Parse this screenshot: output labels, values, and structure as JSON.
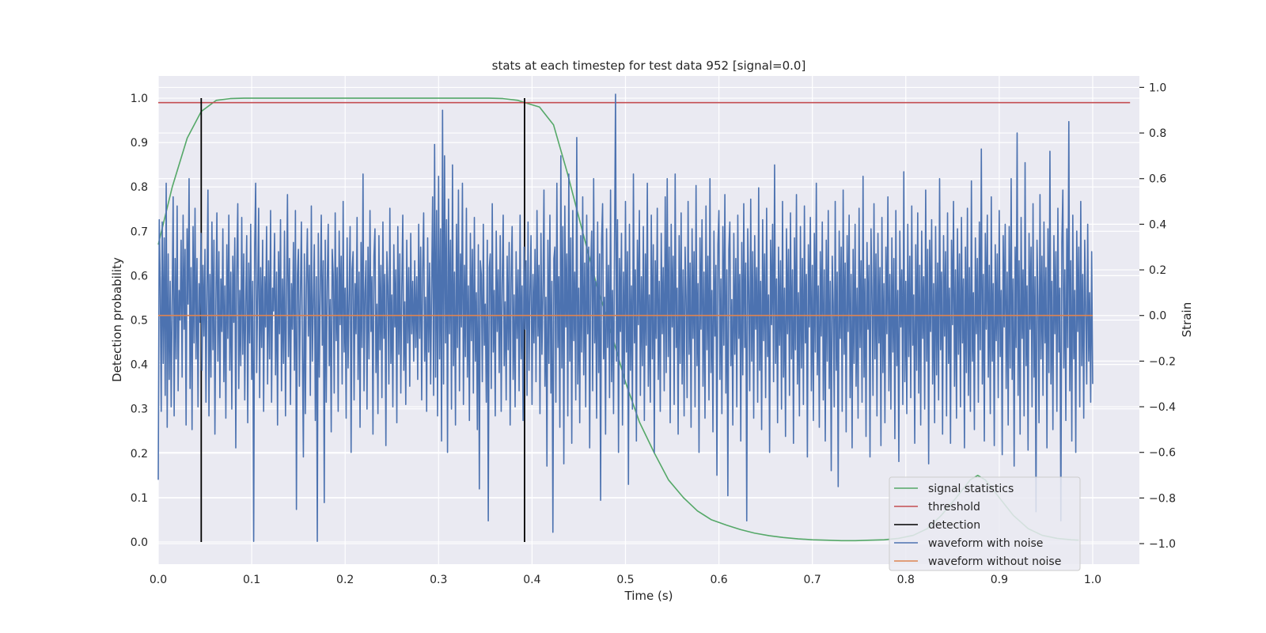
{
  "chart_data": {
    "type": "line",
    "title": "stats at each timestep for test data 952 [signal=0.0]",
    "xlabel": "Time (s)",
    "ylabel": "Detection probability",
    "y2label": "Strain",
    "xlim": [
      0.0,
      1.05
    ],
    "ylim": [
      -0.05,
      1.05
    ],
    "y2lim": [
      -1.09,
      1.05
    ],
    "xticks": [
      "0.0",
      "0.1",
      "0.2",
      "0.3",
      "0.4",
      "0.5",
      "0.6",
      "0.7",
      "0.8",
      "0.9",
      "1.0"
    ],
    "yticks": [
      "0.0",
      "0.1",
      "0.2",
      "0.3",
      "0.4",
      "0.5",
      "0.6",
      "0.7",
      "0.8",
      "0.9",
      "1.0"
    ],
    "y2ticks": [
      "−1.0",
      "−0.8",
      "−0.6",
      "−0.4",
      "−0.2",
      "0.0",
      "0.2",
      "0.4",
      "0.6",
      "0.8",
      "1.0"
    ],
    "grid": true,
    "legend_position": "lower-right",
    "colors": {
      "signal_statistics": "#55a868",
      "threshold": "#c44e52",
      "detection": "#000000",
      "waveform_with_noise": "#4c72b0",
      "waveform_without_noise": "#dd8452",
      "plot_background": "#eaeaf2",
      "grid": "#ffffff"
    },
    "legend": {
      "signal_statistics": "signal statistics",
      "threshold": "threshold",
      "detection": "detection",
      "waveform_with_noise": "waveform with noise",
      "waveform_without_noise": "waveform without noise"
    },
    "series": [
      {
        "name": "signal statistics",
        "axis": "left",
        "x": [
          0.0,
          0.015,
          0.031,
          0.046,
          0.062,
          0.077,
          0.092,
          0.108,
          0.123,
          0.138,
          0.154,
          0.2,
          0.3,
          0.354,
          0.369,
          0.385,
          0.392,
          0.408,
          0.423,
          0.438,
          0.454,
          0.469,
          0.485,
          0.5,
          0.515,
          0.531,
          0.546,
          0.562,
          0.577,
          0.592,
          0.608,
          0.623,
          0.638,
          0.654,
          0.669,
          0.685,
          0.7,
          0.715,
          0.731,
          0.746,
          0.762,
          0.777,
          0.792,
          0.808,
          0.823,
          0.838,
          0.854,
          0.869,
          0.877,
          0.885,
          0.9,
          0.915,
          0.931,
          0.946,
          0.962,
          0.977,
          0.985
        ],
        "values": [
          0.67,
          0.8,
          0.91,
          0.97,
          0.995,
          0.999,
          1.0,
          1.0,
          1.0,
          1.0,
          1.0,
          1.0,
          1.0,
          1.0,
          0.999,
          0.995,
          0.99,
          0.98,
          0.94,
          0.83,
          0.7,
          0.58,
          0.47,
          0.36,
          0.27,
          0.2,
          0.14,
          0.1,
          0.07,
          0.05,
          0.038,
          0.028,
          0.02,
          0.014,
          0.01,
          0.007,
          0.005,
          0.004,
          0.003,
          0.003,
          0.004,
          0.005,
          0.008,
          0.015,
          0.03,
          0.06,
          0.1,
          0.14,
          0.15,
          0.14,
          0.1,
          0.06,
          0.03,
          0.015,
          0.008,
          0.005,
          0.004
        ]
      },
      {
        "name": "threshold",
        "axis": "left",
        "x": [
          0.0,
          1.04
        ],
        "values": [
          0.99,
          0.99
        ]
      },
      {
        "name": "detection",
        "axis": "left",
        "type": "vline",
        "x": [
          0.046,
          0.392
        ],
        "range": [
          0.0,
          1.0
        ]
      },
      {
        "name": "waveform with noise",
        "axis": "right",
        "x_range": [
          0.0,
          1.0
        ],
        "values": [
          -0.72,
          0.42,
          0.15,
          -0.42,
          0.41,
          -0.21,
          0.34,
          -0.35,
          0.58,
          -0.49,
          0.27,
          -0.28,
          0.15,
          -0.4,
          0.07,
          0.52,
          -0.44,
          0.25,
          -0.19,
          0.48,
          -0.33,
          0.11,
          -0.02,
          0.33,
          -0.27,
          0.44,
          -0.06,
          0.29,
          -0.48,
          0.38,
          0.05,
          0.6,
          -0.32,
          0.21,
          -0.5,
          0.39,
          -0.12,
          0.47,
          -0.19,
          0.25,
          -0.4,
          0.14,
          -0.03,
          0.36,
          -0.24,
          0.22,
          -0.09,
          0.29,
          -0.38,
          0.12,
          0.55,
          -0.44,
          0.18,
          -0.27,
          0.41,
          -0.15,
          0.33,
          -0.52,
          0.07,
          0.45,
          -0.2,
          0.28,
          -0.36,
          0.16,
          -0.07,
          0.38,
          -0.29,
          0.13,
          -0.45,
          0.31,
          -0.1,
          0.44,
          -0.24,
          0.19,
          -0.41,
          0.26,
          -0.03,
          0.34,
          -0.58,
          0.2,
          0.49,
          -0.32,
          0.11,
          -0.22,
          0.43,
          -0.17,
          0.27,
          -0.37,
          0.06,
          0.35,
          -0.47,
          0.23,
          -0.12,
          0.4,
          -0.28,
          0.15,
          -0.99,
          0.3,
          0.58,
          -0.25,
          0.09,
          0.47,
          -0.36,
          0.21,
          -0.14,
          0.33,
          -0.42,
          0.17,
          -0.05,
          0.39,
          -0.3,
          0.24,
          -0.19,
          0.46,
          -0.38,
          0.12,
          0.02,
          0.36,
          -0.26,
          0.19,
          -0.48,
          0.28,
          -0.08,
          0.42,
          -0.33,
          0.16,
          -0.21,
          0.37,
          -0.44,
          0.09,
          0.53,
          -0.18,
          0.25,
          -0.39,
          0.14,
          -0.06,
          0.32,
          -0.24,
          0.46,
          -0.85,
          0.18,
          0.29,
          -0.31,
          0.08,
          0.41,
          -0.15,
          -0.62,
          0.27,
          -0.43,
          0.13,
          0.38,
          -0.09,
          0.22,
          -0.35,
          0.48,
          -0.2,
          0.06,
          0.31,
          -0.46,
          0.17,
          -0.99,
          0.36,
          -0.27,
          0.11,
          0.44,
          -0.13,
          0.24,
          -0.82,
          0.33,
          -0.38,
          0.15,
          0.4,
          -0.22,
          0.07,
          -0.51,
          0.29,
          0.18,
          -0.34,
          0.45,
          -0.11,
          0.21,
          -0.42,
          0.37,
          -0.04,
          0.26,
          -0.3,
          0.5,
          -0.16,
          0.12,
          -0.45,
          0.34,
          -0.23,
          0.08,
          0.39,
          -0.6,
          0.2,
          0.28,
          -0.37,
          0.14,
          -0.08,
          0.43,
          -0.28,
          0.19,
          -0.49,
          0.32,
          -0.14,
          0.62,
          -0.33,
          0.1,
          0.24,
          -0.41,
          0.3,
          -0.19,
          0.46,
          -0.07,
          0.17,
          -0.52,
          0.26,
          0.38,
          -0.25,
          0.05,
          -0.43,
          0.35,
          -0.15,
          0.22,
          -0.36,
          0.41,
          -0.1,
          0.18,
          -0.57,
          0.28,
          0.13,
          -0.3,
          0.47,
          -0.21,
          0.09,
          -0.4,
          0.31,
          -0.05,
          0.2,
          -0.47,
          0.39,
          -0.17,
          0.27,
          -0.34,
          0.12,
          0.44,
          -0.24,
          0.06,
          -0.39,
          0.33,
          -0.12,
          0.21,
          -0.31,
          0.36,
          -0.08,
          0.15,
          -0.2,
          0.24,
          -0.14,
          0.17,
          -0.28,
          0.4,
          -0.1,
          0.3,
          -0.37,
          0.2,
          0.45,
          -0.2,
          0.08,
          -0.42,
          0.34,
          -0.16,
          0.23,
          -0.3,
          0.12,
          0.52,
          -0.35,
          0.75,
          -0.27,
          0.46,
          -0.44,
          0.61,
          -0.19,
          0.38,
          -0.55,
          0.9,
          -0.3,
          0.7,
          -0.12,
          0.42,
          -0.6,
          0.51,
          -0.08,
          0.33,
          -0.41,
          0.66,
          -0.22,
          0.19,
          -0.48,
          0.4,
          -0.14,
          0.55,
          -0.33,
          0.27,
          -0.05,
          0.58,
          -0.39,
          0.22,
          -0.18,
          0.47,
          -0.27,
          0.13,
          -0.46,
          0.36,
          -0.11,
          0.29,
          -0.34,
          0.43,
          -0.2,
          0.1,
          -0.5,
          0.31,
          -0.76,
          0.24,
          0.18,
          -0.29,
          0.4,
          -0.13,
          0.05,
          -0.38,
          0.33,
          -0.9,
          0.21,
          0.27,
          -0.32,
          0.49,
          -0.16,
          0.11,
          -0.44,
          0.37,
          -0.07,
          0.2,
          -0.25,
          0.35,
          -0.42,
          0.14,
          0.44,
          -0.22,
          0.06,
          -0.37,
          0.26,
          -0.15,
          0.32,
          -0.48,
          0.17,
          0.39,
          -0.28,
          0.09,
          -0.4,
          0.28,
          -0.1,
          0.2,
          -0.33,
          0.44,
          -0.19,
          0.13,
          -0.46,
          0.3,
          -0.06,
          0.24,
          -0.35,
          0.41,
          -0.24,
          0.12,
          0.35,
          -0.39,
          0.18,
          -0.12,
          0.29,
          -0.29,
          0.46,
          -0.09,
          0.22,
          -0.43,
          0.36,
          -0.17,
          0.1,
          0.55,
          -0.31,
          0.08,
          -0.66,
          0.33,
          -0.21,
          0.44,
          -0.34,
          0.15,
          -0.95,
          0.25,
          0.3,
          -0.38,
          0.58,
          -0.14,
          0.17,
          -0.49,
          0.7,
          -0.23,
          0.39,
          -0.65,
          0.48,
          -0.05,
          0.27,
          -0.44,
          0.62,
          -0.2,
          0.34,
          -0.56,
          0.46,
          -0.11,
          0.19,
          -0.37,
          0.78,
          -0.3,
          0.12,
          -0.47,
          0.35,
          -0.16,
          0.52,
          -0.26,
          0.23,
          -0.4,
          0.44,
          -0.08,
          0.3,
          -0.58,
          0.21,
          0.37,
          -0.33,
          0.6,
          -0.12,
          0.15,
          -0.45,
          0.41,
          -0.25,
          0.27,
          -0.81,
          0.33,
          0.49,
          -0.19,
          0.08,
          -0.52,
          0.38,
          -0.14,
          0.22,
          -0.36,
          0.55,
          -0.29,
          0.11,
          -0.43,
          0.3,
          0.97,
          -0.2,
          0.42,
          -0.6,
          0.25,
          -0.07,
          0.36,
          -0.48,
          0.19,
          -0.3,
          0.5,
          -0.16,
          0.28,
          -0.74,
          0.4,
          -0.24,
          0.13,
          -0.41,
          0.62,
          -0.12,
          0.2,
          -0.55,
          0.33,
          -0.04,
          0.46,
          -0.35,
          0.17,
          -0.22,
          0.39,
          -0.46,
          0.27,
          -0.13,
          0.58,
          -0.31,
          0.09,
          -0.38,
          0.44,
          -0.19,
          0.31,
          -0.6,
          0.24,
          -0.1,
          0.47,
          -0.28,
          0.15,
          -0.42,
          0.36,
          -0.08,
          0.21,
          -0.33,
          0.52,
          -0.25,
          0.6,
          -0.18,
          0.3,
          -0.47,
          0.4,
          -0.05,
          0.26,
          -0.39,
          0.62,
          -0.14,
          0.12,
          -0.52,
          0.35,
          -0.21,
          0.45,
          -0.3,
          0.2,
          -0.44,
          0.3,
          0.08,
          -0.36,
          0.5,
          -0.17,
          0.23,
          -0.49,
          0.38,
          -0.1,
          0.28,
          -0.4,
          0.57,
          -0.22,
          0.14,
          -0.6,
          0.34,
          -0.06,
          0.42,
          -0.31,
          0.19,
          -0.45,
          0.48,
          -0.15,
          0.26,
          -0.37,
          0.6,
          -0.25,
          0.11,
          -0.51,
          0.37,
          -0.09,
          0.22,
          -0.7,
          0.31,
          0.46,
          -0.28,
          0.16,
          -0.43,
          0.39,
          -0.13,
          0.53,
          -0.34,
          0.2,
          -0.79,
          0.29,
          0.41,
          -0.22,
          0.07,
          -0.48,
          0.36,
          -0.17,
          0.25,
          -0.4,
          0.44,
          -0.1,
          0.18,
          -0.55,
          0.32,
          -0.26,
          0.49,
          -0.14,
          0.23,
          -0.9,
          0.38,
          0.12,
          -0.33,
          0.51,
          -0.2,
          0.28,
          -0.45,
          0.35,
          -0.06,
          0.21,
          -0.38,
          0.56,
          -0.24,
          0.15,
          -0.5,
          0.42,
          -0.11,
          0.27,
          -0.36,
          0.47,
          -0.18,
          0.09,
          -0.6,
          0.33,
          -0.04,
          0.4,
          -0.29,
          0.66,
          -0.21,
          0.16,
          -0.47,
          0.3,
          -0.13,
          0.24,
          -0.41,
          0.5,
          -0.27,
          0.12,
          -0.53,
          0.38,
          -0.08,
          0.29,
          -0.35,
          0.45,
          -0.19,
          0.2,
          -0.56,
          0.34,
          -0.15,
          0.53,
          -0.3,
          0.1,
          -0.44,
          0.39,
          -0.23,
          0.25,
          -0.39,
          0.48,
          -0.12,
          0.18,
          -0.62,
          0.31,
          -0.05,
          0.43,
          -0.33,
          0.22,
          -0.46,
          0.36,
          -0.16,
          0.58,
          -0.26,
          0.13,
          -0.49,
          0.28,
          -0.09,
          0.41,
          -0.37,
          0.2,
          -0.55,
          0.33,
          -0.2,
          0.46,
          -0.32,
          0.15,
          -0.68,
          0.26,
          0.05,
          -0.4,
          0.5,
          -0.24,
          0.19,
          -0.75,
          0.37,
          -0.1,
          0.3,
          -0.42,
          0.55,
          -0.17,
          0.23,
          -0.51,
          0.35,
          -0.07,
          0.44,
          -0.36,
          0.18,
          -0.58,
          0.29,
          -0.21,
          0.4,
          -0.31,
          0.12,
          -0.45,
          0.47,
          -0.14,
          0.24,
          -0.38,
          0.61,
          -0.27,
          0.16,
          -0.53,
          0.32,
          -0.06,
          0.22,
          -0.62,
          0.38,
          0.1,
          -0.35,
          0.49,
          -0.19,
          0.27,
          -0.44,
          0.36,
          -0.12,
          0.21,
          -0.57,
          0.43,
          -0.25,
          0.14,
          -0.47,
          0.3,
          -0.08,
          0.52,
          -0.33,
          0.18,
          -0.41,
          0.34,
          -0.16,
          0.25,
          -0.54,
          0.46,
          -0.22,
          0.11,
          -0.64,
          0.37,
          -0.05,
          0.2,
          -0.39,
          0.63,
          -0.29,
          0.15,
          -0.43,
          0.4,
          -0.18,
          0.26,
          -0.36,
          0.48,
          -0.13,
          0.09,
          -0.56,
          0.31,
          -0.24,
          0.45,
          -0.34,
          0.22,
          -0.48,
          0.37,
          -0.1,
          0.17,
          -0.41,
          0.55,
          -0.2,
          0.29,
          -0.65,
          0.33,
          -0.07,
          0.42,
          -0.3,
          0.14,
          -0.47,
          0.39,
          -0.26,
          0.23,
          -0.37,
          0.6,
          -0.15,
          0.19,
          -0.52,
          0.35,
          -0.09,
          0.28,
          -0.44,
          0.45,
          -0.21,
          0.12,
          -0.56,
          0.33,
          -0.04,
          0.5,
          -0.31,
          0.2,
          -0.45,
          0.38,
          -0.17,
          0.27,
          -0.4,
          0.43,
          -0.12,
          0.16,
          -0.58,
          0.3,
          -0.25,
          0.47,
          -0.35,
          0.21,
          -0.42,
          0.59,
          -0.2,
          0.1,
          -0.5,
          0.34,
          -0.08,
          0.25,
          -0.38,
          0.41,
          -0.15,
          0.73,
          -0.3,
          0.18,
          -0.55,
          0.36,
          -0.06,
          0.44,
          -0.27,
          0.22,
          -0.43,
          0.52,
          -0.2,
          0.14,
          -0.57,
          0.31,
          -0.11,
          0.27,
          -0.36,
          0.46,
          -0.18,
          0.11,
          -0.61,
          0.35,
          -0.05,
          0.4,
          -0.32,
          0.19,
          -0.48,
          0.39,
          -0.23,
          0.6,
          -0.28,
          0.16,
          -0.66,
          0.3,
          -0.14,
          0.8,
          -0.35,
          0.24,
          -0.52,
          0.43,
          -0.1,
          0.2,
          -0.44,
          0.67,
          -0.22,
          0.13,
          -0.59,
          0.36,
          -0.06,
          0.3,
          -0.4,
          0.49,
          -0.27,
          0.17,
          -0.86,
          0.33,
          0.08,
          -0.47,
          0.53,
          -0.19,
          0.26,
          -0.35,
          0.41,
          -0.12,
          0.21,
          -0.58,
          0.38,
          -0.25,
          0.72,
          -0.3,
          0.15,
          -0.5,
          0.35,
          -0.08,
          0.28,
          -0.42,
          0.47,
          -0.16,
          0.12,
          -0.9,
          0.32,
          0.55,
          -0.23,
          0.2,
          -0.46,
          0.38,
          -0.14,
          0.85,
          -0.33,
          0.24,
          -0.55,
          0.44,
          -0.19,
          0.11,
          -0.6,
          0.37,
          -0.07,
          0.3,
          -0.4,
          0.5,
          -0.22,
          0.18,
          -0.45,
          0.33,
          0.02,
          -0.3,
          0.4,
          -0.2,
          0.1,
          -0.38,
          0.28,
          -0.3
        ]
      },
      {
        "name": "waveform without noise",
        "axis": "right",
        "x": [
          0.0,
          1.0
        ],
        "values": [
          0.0,
          0.0
        ]
      }
    ]
  }
}
